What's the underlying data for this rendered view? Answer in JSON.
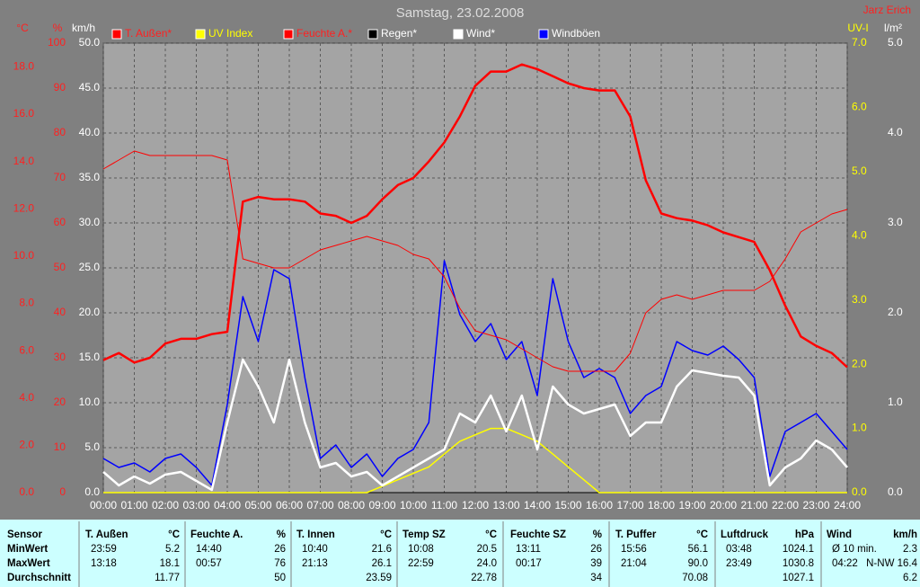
{
  "chart_data": {
    "type": "line",
    "title": "Samstag, 23.02.2008",
    "author": "Jarz Erich",
    "x": [
      0,
      0.5,
      1,
      1.5,
      2,
      2.5,
      3,
      3.5,
      4,
      4.5,
      5,
      5.5,
      6,
      6.5,
      7,
      7.5,
      8,
      8.5,
      9,
      9.5,
      10,
      10.5,
      11,
      11.5,
      12,
      12.5,
      13,
      13.5,
      14,
      14.5,
      15,
      15.5,
      16,
      16.5,
      17,
      17.5,
      18,
      18.5,
      19,
      19.5,
      20,
      20.5,
      21,
      21.5,
      22,
      22.5,
      23,
      23.5,
      24
    ],
    "xlim": [
      0,
      24
    ],
    "xticks": [
      {
        "value": 0,
        "label": "00:00"
      },
      {
        "value": 1,
        "label": "01:00"
      },
      {
        "value": 2,
        "label": "02:00"
      },
      {
        "value": 3,
        "label": "03:00"
      },
      {
        "value": 4,
        "label": "04:00"
      },
      {
        "value": 5,
        "label": "05:00"
      },
      {
        "value": 6,
        "label": "06:00"
      },
      {
        "value": 7,
        "label": "07:00"
      },
      {
        "value": 8,
        "label": "08:00"
      },
      {
        "value": 9,
        "label": "09:00"
      },
      {
        "value": 10,
        "label": "10:00"
      },
      {
        "value": 11,
        "label": "11:00"
      },
      {
        "value": 12,
        "label": "12:00"
      },
      {
        "value": 13,
        "label": "13:00"
      },
      {
        "value": 14,
        "label": "14:00"
      },
      {
        "value": 15,
        "label": "15:00"
      },
      {
        "value": 16,
        "label": "16:00"
      },
      {
        "value": 17,
        "label": "17:00"
      },
      {
        "value": 18,
        "label": "18:00"
      },
      {
        "value": 19,
        "label": "19:00"
      },
      {
        "value": 20,
        "label": "20:00"
      },
      {
        "value": 21,
        "label": "21:00"
      },
      {
        "value": 22,
        "label": "22:00"
      },
      {
        "value": 23,
        "label": "23:00"
      },
      {
        "value": 24,
        "label": "24:00"
      }
    ],
    "grid": true,
    "axes": [
      {
        "label": "°C",
        "color": "#ff2020",
        "ylim": [
          0,
          19
        ],
        "yticks": [
          {
            "value": 0,
            "label": "0.0"
          },
          {
            "value": 2,
            "label": "2.0"
          },
          {
            "value": 4,
            "label": "4.0"
          },
          {
            "value": 6,
            "label": "6.0"
          },
          {
            "value": 8,
            "label": "8.0"
          },
          {
            "value": 10,
            "label": "10.0"
          },
          {
            "value": 12,
            "label": "12.0"
          },
          {
            "value": 14,
            "label": "14.0"
          },
          {
            "value": 16,
            "label": "16.0"
          },
          {
            "value": 18,
            "label": "18.0"
          }
        ]
      },
      {
        "label": "%",
        "color": "#ff2020",
        "ylim": [
          0,
          100
        ],
        "yticks": [
          0,
          10,
          20,
          30,
          40,
          50,
          60,
          70,
          80,
          90,
          100
        ]
      },
      {
        "label": "km/h",
        "color": "#ffffff",
        "ylim": [
          0,
          50
        ],
        "yticks": [
          {
            "value": 0,
            "label": "0.0"
          },
          {
            "value": 5,
            "label": "5.0"
          },
          {
            "value": 10,
            "label": "10.0"
          },
          {
            "value": 15,
            "label": "15.0"
          },
          {
            "value": 20,
            "label": "20.0"
          },
          {
            "value": 25,
            "label": "25.0"
          },
          {
            "value": 30,
            "label": "30.0"
          },
          {
            "value": 35,
            "label": "35.0"
          },
          {
            "value": 40,
            "label": "40.0"
          },
          {
            "value": 45,
            "label": "45.0"
          },
          {
            "value": 50,
            "label": "50.0"
          }
        ]
      },
      {
        "label": "UV-I",
        "color": "#ffff00",
        "ylim": [
          0,
          7
        ],
        "yticks": [
          {
            "value": 0,
            "label": "0.0"
          },
          {
            "value": 1,
            "label": "1.0"
          },
          {
            "value": 2,
            "label": "2.0"
          },
          {
            "value": 3,
            "label": "3.0"
          },
          {
            "value": 4,
            "label": "4.0"
          },
          {
            "value": 5,
            "label": "5.0"
          },
          {
            "value": 6,
            "label": "6.0"
          },
          {
            "value": 7,
            "label": "7.0"
          }
        ]
      },
      {
        "label": "l/m²",
        "color": "#ffffff",
        "ylim": [
          0,
          5
        ],
        "yticks": [
          {
            "value": 0,
            "label": "0.0"
          },
          {
            "value": 1,
            "label": "1.0"
          },
          {
            "value": 2,
            "label": "2.0"
          },
          {
            "value": 3,
            "label": "3.0"
          },
          {
            "value": 4,
            "label": "4.0"
          },
          {
            "value": 5,
            "label": "5.0"
          }
        ]
      }
    ],
    "series": [
      {
        "name": "T. Außen*",
        "color": "#ff0000",
        "axis": 0,
        "values": [
          5.6,
          5.9,
          5.5,
          5.7,
          6.3,
          6.5,
          6.5,
          6.7,
          6.8,
          12.3,
          12.5,
          12.4,
          12.4,
          12.3,
          11.8,
          11.7,
          11.4,
          11.7,
          12.4,
          13.0,
          13.3,
          14.0,
          14.8,
          15.9,
          17.2,
          17.8,
          17.8,
          18.1,
          17.9,
          17.6,
          17.3,
          17.1,
          17.0,
          17.0,
          15.9,
          13.2,
          11.8,
          11.6,
          11.5,
          11.3,
          11.0,
          10.8,
          10.6,
          9.4,
          7.9,
          6.6,
          6.2,
          5.9,
          5.3
        ]
      },
      {
        "name": "UV Index",
        "color": "#ffff00",
        "axis": 3,
        "values": [
          0,
          0,
          0,
          0,
          0,
          0,
          0,
          0,
          0,
          0,
          0,
          0,
          0,
          0,
          0,
          0,
          0,
          0,
          0.1,
          0.2,
          0.3,
          0.4,
          0.6,
          0.8,
          0.9,
          1.0,
          1.0,
          0.9,
          0.8,
          0.6,
          0.4,
          0.2,
          0,
          0,
          0,
          0,
          0,
          0,
          0,
          0,
          0,
          0,
          0,
          0,
          0,
          0,
          0,
          0,
          0
        ]
      },
      {
        "name": "Feuchte A.*",
        "color": "#ff0000",
        "axis": 1,
        "values": [
          72,
          74,
          76,
          75,
          75,
          75,
          75,
          75,
          74,
          52,
          51,
          50,
          50,
          52,
          54,
          55,
          56,
          57,
          56,
          55,
          53,
          52,
          48,
          41,
          36,
          35,
          34,
          32,
          30,
          28,
          27,
          27,
          27,
          27,
          31,
          40,
          43,
          44,
          43,
          44,
          45,
          45,
          45,
          47,
          52,
          58,
          60,
          62,
          63
        ]
      },
      {
        "name": "Regen*",
        "color": "#000000",
        "axis": 4,
        "values": [
          0,
          0,
          0,
          0,
          0,
          0,
          0,
          0,
          0,
          0,
          0,
          0,
          0,
          0,
          0,
          0,
          0,
          0,
          0,
          0,
          0,
          0,
          0,
          0,
          0,
          0,
          0,
          0,
          0,
          0,
          0,
          0,
          0,
          0,
          0,
          0,
          0,
          0,
          0,
          0,
          0,
          0,
          0,
          0,
          0,
          0,
          0,
          0,
          0
        ]
      },
      {
        "name": "Wind*",
        "color": "#ffffff",
        "axis": 2,
        "values": [
          2.3,
          0.8,
          1.8,
          1.0,
          2.0,
          2.3,
          1.3,
          0.3,
          7.8,
          14.8,
          11.8,
          7.8,
          14.8,
          7.8,
          2.8,
          3.3,
          1.8,
          2.3,
          0.8,
          1.8,
          2.8,
          3.8,
          4.8,
          8.8,
          7.8,
          10.8,
          6.8,
          10.8,
          4.8,
          11.8,
          9.8,
          8.8,
          9.3,
          9.8,
          6.3,
          7.8,
          7.8,
          11.8,
          13.6,
          13.3,
          13.0,
          12.8,
          10.8,
          0.8,
          2.8,
          3.8,
          5.8,
          4.8,
          2.8
        ]
      },
      {
        "name": "Windböen",
        "color": "#0000ff",
        "axis": 2,
        "values": [
          3.8,
          2.8,
          3.3,
          2.3,
          3.8,
          4.3,
          2.8,
          0.8,
          9.8,
          21.8,
          16.8,
          24.8,
          23.8,
          12.8,
          3.8,
          5.3,
          2.8,
          4.3,
          1.8,
          3.8,
          4.8,
          7.8,
          25.8,
          19.8,
          16.8,
          18.8,
          14.8,
          16.8,
          10.8,
          23.8,
          16.8,
          12.8,
          13.8,
          12.8,
          8.8,
          10.8,
          11.8,
          16.8,
          15.8,
          15.3,
          16.3,
          14.8,
          12.8,
          1.8,
          6.8,
          7.8,
          8.8,
          6.8,
          4.8
        ]
      }
    ]
  },
  "table": {
    "row_labels": [
      "Sensor",
      "MinWert",
      "MaxWert",
      "Durchschnitt"
    ],
    "columns": [
      {
        "name": "T. Außen",
        "unit": "°C",
        "min": [
          "23:59",
          "5.2"
        ],
        "max": [
          "13:18",
          "18.1"
        ],
        "avg": "11.77"
      },
      {
        "name": "Feuchte A.",
        "unit": "%",
        "min": [
          "14:40",
          "26"
        ],
        "max": [
          "00:57",
          "76"
        ],
        "avg": "50"
      },
      {
        "name": "T. Innen",
        "unit": "°C",
        "min": [
          "10:40",
          "21.6"
        ],
        "max": [
          "21:13",
          "26.1"
        ],
        "avg": "23.59"
      },
      {
        "name": "Temp SZ",
        "unit": "°C",
        "min": [
          "10:08",
          "20.5"
        ],
        "max": [
          "22:59",
          "24.0"
        ],
        "avg": "22.78"
      },
      {
        "name": "Feuchte SZ",
        "unit": "%",
        "min": [
          "13:11",
          "26"
        ],
        "max": [
          "00:17",
          "39"
        ],
        "avg": "34"
      },
      {
        "name": "T. Puffer",
        "unit": "°C",
        "min": [
          "15:56",
          "56.1"
        ],
        "max": [
          "21:04",
          "90.0"
        ],
        "avg": "70.08"
      },
      {
        "name": "Luftdruck",
        "unit": "hPa",
        "min": [
          "03:48",
          "1024.1"
        ],
        "max": [
          "23:49",
          "1030.8"
        ],
        "avg": "1027.1"
      },
      {
        "name": "Wind",
        "unit": "km/h",
        "min": [
          "Ø 10 min.",
          "2.3"
        ],
        "max": [
          "04:22",
          "N-NW 16.4"
        ],
        "avg": "6.2"
      }
    ]
  }
}
